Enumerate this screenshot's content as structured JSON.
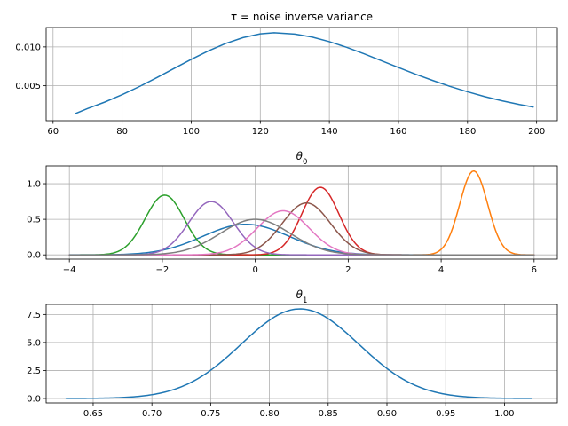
{
  "chart_data": [
    {
      "type": "line",
      "title": "τ = noise inverse variance",
      "xlabel": "",
      "ylabel": "",
      "xlim": [
        58,
        206
      ],
      "ylim": [
        0.0005,
        0.0125
      ],
      "xticks": [
        60,
        80,
        100,
        120,
        140,
        160,
        180,
        200
      ],
      "xtick_labels": [
        "60",
        "80",
        "100",
        "120",
        "140",
        "160",
        "180",
        "200"
      ],
      "yticks": [
        0.005,
        0.01
      ],
      "ytick_labels": [
        "0.005",
        "0.010"
      ],
      "grid": true,
      "series": [
        {
          "color": "#1f77b4",
          "x": [
            66.5,
            70,
            75,
            80,
            85,
            90,
            95,
            100,
            105,
            110,
            115,
            120,
            124,
            130,
            135,
            140,
            145,
            150,
            155,
            160,
            165,
            170,
            175,
            180,
            185,
            190,
            195,
            199
          ],
          "y": [
            0.00142,
            0.00206,
            0.0029,
            0.00385,
            0.0049,
            0.00604,
            0.00722,
            0.00839,
            0.00949,
            0.01045,
            0.0112,
            0.01169,
            0.01183,
            0.01166,
            0.01127,
            0.01068,
            0.00995,
            0.00912,
            0.00824,
            0.00735,
            0.00648,
            0.00567,
            0.00491,
            0.00422,
            0.0036,
            0.00306,
            0.00259,
            0.00226
          ]
        }
      ]
    },
    {
      "type": "line",
      "title": "θ0",
      "title_base": "θ",
      "title_sub": "0",
      "xlabel": "",
      "ylabel": "",
      "xlim": [
        -4.5,
        6.5
      ],
      "ylim": [
        -0.06,
        1.25
      ],
      "xticks": [
        -4,
        -2,
        0,
        2,
        4,
        6
      ],
      "xtick_labels": [
        "−4",
        "−2",
        "0",
        "2",
        "4",
        "6"
      ],
      "yticks": [
        0,
        0.5,
        1.0
      ],
      "ytick_labels": [
        "0.0",
        "0.5",
        "1.0"
      ],
      "grid": true,
      "x_start": -4,
      "x_end": 6,
      "series": [
        {
          "color": "#1f77b4",
          "mean": -0.2,
          "sd": 0.93,
          "peak": 0.43
        },
        {
          "color": "#ff7f0e",
          "mean": 4.7,
          "sd": 0.3,
          "peak": 1.18
        },
        {
          "color": "#2ca02c",
          "mean": -1.95,
          "sd": 0.42,
          "peak": 0.84
        },
        {
          "color": "#d62728",
          "mean": 1.4,
          "sd": 0.4,
          "peak": 0.95
        },
        {
          "color": "#9467bd",
          "mean": -0.95,
          "sd": 0.48,
          "peak": 0.75
        },
        {
          "color": "#8c564b",
          "mean": 1.1,
          "sd": 0.52,
          "peak": 0.73
        },
        {
          "color": "#e377c2",
          "mean": 0.6,
          "sd": 0.56,
          "peak": 0.62
        },
        {
          "color": "#7f7f7f",
          "mean": 0.0,
          "sd": 0.75,
          "peak": 0.5
        }
      ]
    },
    {
      "type": "line",
      "title": "θ1",
      "title_base": "θ",
      "title_sub": "1",
      "xlabel": "",
      "ylabel": "",
      "xlim": [
        0.61,
        1.045
      ],
      "ylim": [
        -0.4,
        8.4
      ],
      "xticks": [
        0.65,
        0.7,
        0.75,
        0.8,
        0.85,
        0.9,
        0.95,
        1.0
      ],
      "xtick_labels": [
        "0.65",
        "0.70",
        "0.75",
        "0.80",
        "0.85",
        "0.90",
        "0.95",
        "1.00"
      ],
      "yticks": [
        0,
        2.5,
        5.0,
        7.5
      ],
      "ytick_labels": [
        "0.0",
        "2.5",
        "5.0",
        "7.5"
      ],
      "grid": true,
      "x_start": 0.627,
      "x_end": 1.023,
      "series": [
        {
          "color": "#1f77b4",
          "mean": 0.826,
          "sd": 0.05,
          "peak": 8.0
        }
      ]
    }
  ]
}
